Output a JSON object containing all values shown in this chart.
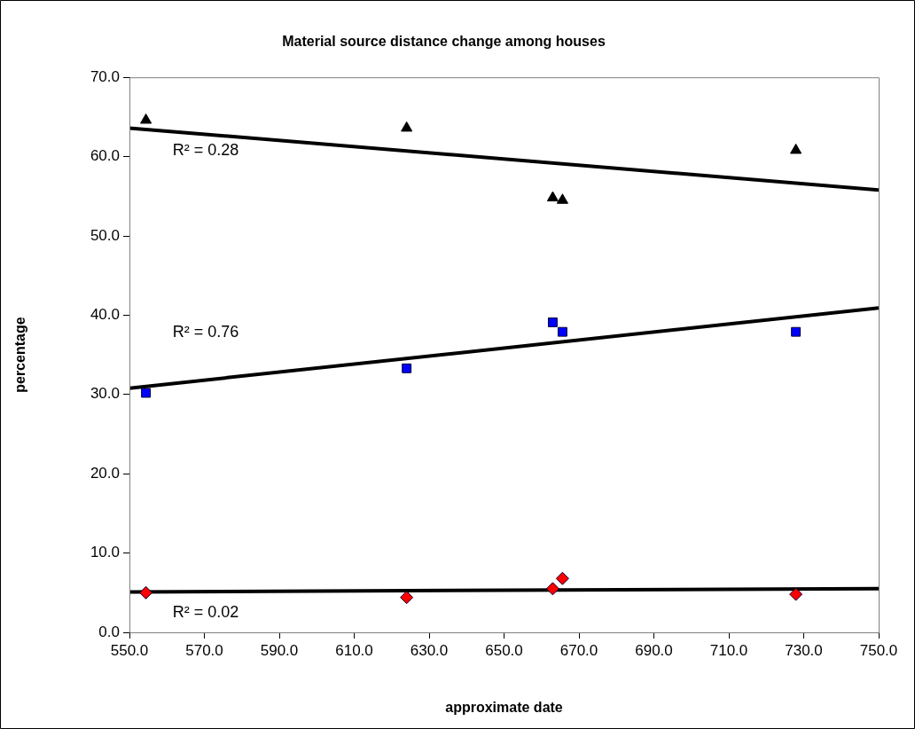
{
  "chart_data": {
    "type": "scatter",
    "title": "Material source distance change among houses",
    "xlabel": "approximate date",
    "ylabel": "percentage",
    "xlim": [
      550,
      750
    ],
    "xticks": [
      {
        "value": 550,
        "label": "550.0"
      },
      {
        "value": 570,
        "label": "570.0"
      },
      {
        "value": 590,
        "label": "590.0"
      },
      {
        "value": 610,
        "label": "610.0"
      },
      {
        "value": 630,
        "label": "630.0"
      },
      {
        "value": 650,
        "label": "650.0"
      },
      {
        "value": 670,
        "label": "670.0"
      },
      {
        "value": 690,
        "label": "690.0"
      },
      {
        "value": 710,
        "label": "710.0"
      },
      {
        "value": 730,
        "label": "730.0"
      },
      {
        "value": 750,
        "label": "750.0"
      }
    ],
    "ylim": [
      0,
      70
    ],
    "yticks": [
      {
        "value": 0,
        "label": "0.0"
      },
      {
        "value": 10,
        "label": "10.0"
      },
      {
        "value": 20,
        "label": "20.0"
      },
      {
        "value": 30,
        "label": "30.0"
      },
      {
        "value": 40,
        "label": "40.0"
      },
      {
        "value": 50,
        "label": "50.0"
      },
      {
        "value": 60,
        "label": "60.0"
      },
      {
        "value": 70,
        "label": "70.0"
      }
    ],
    "grid": false,
    "legend": false,
    "series": [
      {
        "type": "scatter",
        "marker": "triangle",
        "color": "#000000",
        "x": [
          554.4,
          624.0,
          663.0,
          665.6,
          727.9
        ],
        "values": [
          64.6,
          63.6,
          54.8,
          54.5,
          60.8
        ]
      },
      {
        "type": "scatter",
        "marker": "square",
        "color": "#0000ff",
        "x": [
          554.4,
          624.0,
          663.0,
          665.6,
          727.9
        ],
        "values": [
          30.2,
          33.3,
          39.1,
          37.9,
          37.9
        ]
      },
      {
        "type": "scatter",
        "marker": "diamond",
        "color": "#ff0000",
        "x": [
          554.4,
          624.0,
          663.0,
          665.6,
          727.9
        ],
        "values": [
          5.0,
          4.4,
          5.5,
          6.8,
          4.8
        ]
      },
      {
        "type": "line",
        "marker": "none",
        "color": "#000000",
        "x": [
          550,
          750
        ],
        "values": [
          63.6,
          55.8
        ]
      },
      {
        "type": "line",
        "marker": "none",
        "color": "#000000",
        "x": [
          550,
          750
        ],
        "values": [
          30.8,
          40.9
        ]
      },
      {
        "type": "line",
        "marker": "none",
        "color": "#000000",
        "x": [
          550,
          750
        ],
        "values": [
          5.1,
          5.5
        ]
      }
    ],
    "annotations": [
      "R² = 0.28",
      "R² = 0.76",
      "R² = 0.02"
    ]
  }
}
